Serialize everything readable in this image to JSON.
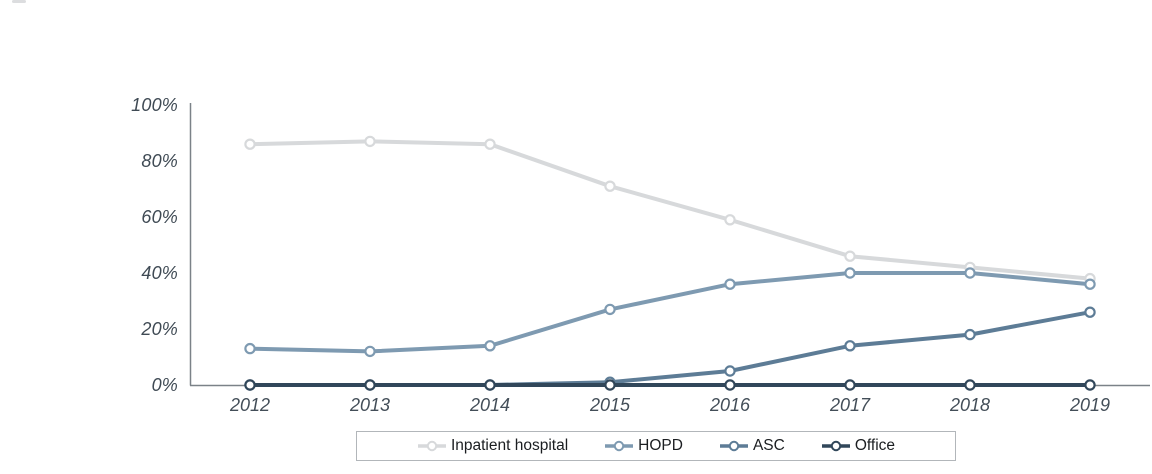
{
  "chart_data": {
    "type": "line",
    "title": "",
    "xlabel": "",
    "ylabel": "",
    "x": [
      "2012",
      "2013",
      "2014",
      "2015",
      "2016",
      "2017",
      "2018",
      "2019"
    ],
    "series": [
      {
        "name": "Inpatient hospital",
        "color": "#d7d9db",
        "values": [
          86,
          87,
          86,
          71,
          59,
          46,
          42,
          38
        ]
      },
      {
        "name": "HOPD",
        "color": "#7e9ab1",
        "values": [
          13,
          12,
          14,
          27,
          36,
          40,
          40,
          36
        ]
      },
      {
        "name": "ASC",
        "color": "#5d7c96",
        "values": [
          0,
          0,
          0,
          1,
          5,
          14,
          18,
          26
        ]
      },
      {
        "name": "Office",
        "color": "#31475a",
        "values": [
          0,
          0,
          0,
          0,
          0,
          0,
          0,
          0
        ]
      }
    ],
    "ylim": [
      0,
      100
    ],
    "ytick_values": [
      0,
      20,
      40,
      60,
      80,
      100
    ],
    "ytick_labels": [
      "0%",
      "20%",
      "40%",
      "60%",
      "80%",
      "100%"
    ],
    "xtick_labels": [
      "2012",
      "2013",
      "2014",
      "2015",
      "2016",
      "2017",
      "2018",
      "2019"
    ],
    "grid": false,
    "marker": "open-circle",
    "legend_position": "bottom-center",
    "legend_entries": [
      "Inpatient hospital",
      "HOPD",
      "ASC",
      "Office"
    ]
  },
  "colors": {
    "background": "#ffffff",
    "axis": "#7b8288",
    "tick_label": "#3f4a54",
    "legend_border": "#b2b6ba",
    "legend_text": "#1b1e21",
    "marker_fill": "#ffffff"
  }
}
